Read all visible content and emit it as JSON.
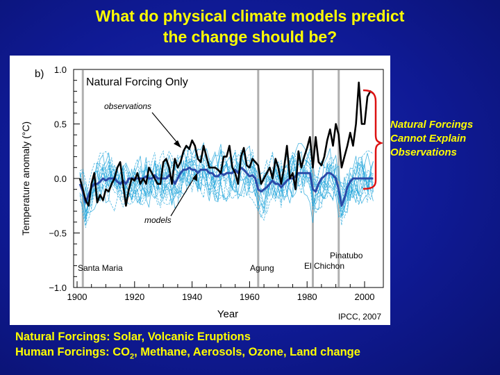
{
  "title": {
    "line1": "What do physical climate models predict",
    "line2": "the change should be?"
  },
  "side_note": {
    "line1": "Natural Forcings",
    "line2": "Cannot Explain",
    "line3": "Observations"
  },
  "footer": {
    "natural": "Natural Forcings: Solar, Volcanic Eruptions",
    "human_prefix": "Human Forcings: CO",
    "human_sub": "2",
    "human_suffix": ", Methane, Aerosols, Ozone, Land change"
  },
  "colors": {
    "title": "#ffff00",
    "background": "#1420a8",
    "observations": "#000000",
    "models_mean": "#2a4aa8",
    "model_runs": "#29a8dc",
    "bracket": "#dd1111"
  },
  "chart_data": {
    "type": "line",
    "panel_label": "b)",
    "title": "Natural Forcing Only",
    "xlabel": "Year",
    "ylabel": "Temperature anomaly (°C)",
    "xlim": [
      1900,
      2005
    ],
    "ylim": [
      -1.0,
      1.0
    ],
    "x_ticks": [
      1900,
      1920,
      1940,
      1960,
      1980,
      2000
    ],
    "y_ticks": [
      1.0,
      0.5,
      0.0,
      -0.5,
      -1.0
    ],
    "y_tick_labels": [
      "1.0",
      "0.5",
      "0.0",
      "−0.5",
      "−1.0"
    ],
    "source": "IPCC, 2007",
    "annotations": {
      "observations": "observations",
      "models": "models"
    },
    "volcanoes": [
      {
        "name": "Santa Maria",
        "year": 1902
      },
      {
        "name": "Agung",
        "year": 1963
      },
      {
        "name": "El Chichon",
        "year": 1982
      },
      {
        "name": "Pinatubo",
        "year": 1991
      }
    ],
    "series": [
      {
        "name": "observations",
        "x": [
          1901,
          1902,
          1903,
          1904,
          1905,
          1906,
          1907,
          1908,
          1909,
          1910,
          1911,
          1912,
          1913,
          1914,
          1915,
          1916,
          1917,
          1918,
          1919,
          1920,
          1921,
          1922,
          1923,
          1924,
          1925,
          1926,
          1927,
          1928,
          1929,
          1930,
          1931,
          1932,
          1933,
          1934,
          1935,
          1936,
          1937,
          1938,
          1939,
          1940,
          1941,
          1942,
          1943,
          1944,
          1945,
          1946,
          1947,
          1948,
          1949,
          1950,
          1951,
          1952,
          1953,
          1954,
          1955,
          1956,
          1957,
          1958,
          1959,
          1960,
          1961,
          1962,
          1963,
          1964,
          1965,
          1966,
          1967,
          1968,
          1969,
          1970,
          1971,
          1972,
          1973,
          1974,
          1975,
          1976,
          1977,
          1978,
          1979,
          1980,
          1981,
          1982,
          1983,
          1984,
          1985,
          1986,
          1987,
          1988,
          1989,
          1990,
          1991,
          1992,
          1993,
          1994,
          1995,
          1996,
          1997,
          1998,
          1999,
          2000,
          2001,
          2002,
          2003
        ],
        "values": [
          0.0,
          -0.1,
          -0.2,
          -0.25,
          -0.05,
          0.05,
          -0.22,
          -0.15,
          -0.2,
          -0.1,
          -0.12,
          -0.05,
          0.0,
          0.1,
          0.15,
          -0.05,
          -0.25,
          -0.1,
          0.0,
          -0.02,
          0.05,
          -0.05,
          0.0,
          -0.05,
          0.1,
          0.05,
          0.0,
          -0.05,
          -0.05,
          0.15,
          0.18,
          0.1,
          -0.05,
          0.18,
          0.1,
          0.15,
          0.25,
          0.3,
          0.27,
          0.35,
          0.3,
          0.18,
          0.15,
          0.3,
          0.2,
          0.1,
          0.1,
          0.1,
          0.08,
          0.05,
          0.2,
          0.2,
          0.3,
          0.1,
          0.05,
          -0.05,
          0.2,
          0.28,
          0.12,
          0.1,
          0.18,
          0.15,
          0.12,
          -0.05,
          0.0,
          0.05,
          0.1,
          0.0,
          0.18,
          0.1,
          -0.05,
          0.1,
          0.3,
          0.0,
          0.05,
          -0.1,
          0.25,
          0.1,
          0.2,
          0.28,
          0.38,
          0.1,
          0.38,
          0.15,
          0.12,
          0.2,
          0.35,
          0.45,
          0.3,
          0.5,
          0.4,
          0.1,
          0.2,
          0.3,
          0.42,
          0.3,
          0.5,
          0.88,
          0.5,
          0.5,
          0.75,
          0.8,
          0.78
        ]
      },
      {
        "name": "model mean",
        "x": [
          1901,
          1902,
          1903,
          1904,
          1905,
          1906,
          1907,
          1908,
          1909,
          1910,
          1911,
          1912,
          1913,
          1914,
          1915,
          1916,
          1917,
          1918,
          1919,
          1920,
          1921,
          1922,
          1923,
          1924,
          1925,
          1926,
          1927,
          1928,
          1929,
          1930,
          1931,
          1932,
          1933,
          1934,
          1935,
          1936,
          1937,
          1938,
          1939,
          1940,
          1941,
          1942,
          1943,
          1944,
          1945,
          1946,
          1947,
          1948,
          1949,
          1950,
          1951,
          1952,
          1953,
          1954,
          1955,
          1956,
          1957,
          1958,
          1959,
          1960,
          1961,
          1962,
          1963,
          1964,
          1965,
          1966,
          1967,
          1968,
          1969,
          1970,
          1971,
          1972,
          1973,
          1974,
          1975,
          1976,
          1977,
          1978,
          1979,
          1980,
          1981,
          1982,
          1983,
          1984,
          1985,
          1986,
          1987,
          1988,
          1989,
          1990,
          1991,
          1992,
          1993,
          1994,
          1995,
          1996,
          1997,
          1998,
          1999,
          2000,
          2001,
          2002,
          2003
        ],
        "values": [
          -0.05,
          -0.12,
          -0.22,
          -0.15,
          -0.08,
          -0.05,
          -0.05,
          -0.03,
          0.0,
          -0.02,
          0.0,
          0.0,
          0.0,
          -0.03,
          -0.05,
          -0.02,
          -0.05,
          0.0,
          0.0,
          0.0,
          0.0,
          0.0,
          0.0,
          0.02,
          0.0,
          0.0,
          0.03,
          0.0,
          0.0,
          0.0,
          0.0,
          0.03,
          0.0,
          -0.05,
          0.0,
          0.05,
          0.08,
          0.08,
          0.1,
          0.08,
          0.08,
          0.05,
          0.08,
          0.08,
          0.08,
          0.05,
          0.05,
          0.02,
          0.02,
          0.05,
          0.03,
          0.05,
          0.05,
          0.05,
          0.08,
          0.05,
          0.1,
          0.08,
          0.05,
          0.02,
          0.03,
          0.0,
          -0.1,
          -0.12,
          -0.1,
          -0.08,
          -0.05,
          -0.02,
          -0.05,
          -0.05,
          -0.08,
          -0.05,
          -0.02,
          0.0,
          0.0,
          0.02,
          0.05,
          0.05,
          0.05,
          0.05,
          0.05,
          -0.1,
          -0.12,
          -0.05,
          0.0,
          0.02,
          0.05,
          0.05,
          0.03,
          0.0,
          -0.1,
          -0.25,
          -0.18,
          -0.08,
          -0.03,
          0.0,
          0.0,
          0.0,
          0.0,
          0.0,
          0.0,
          0.0,
          0.0
        ]
      }
    ]
  }
}
